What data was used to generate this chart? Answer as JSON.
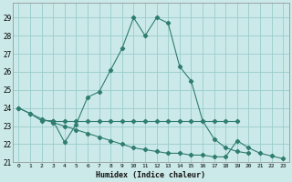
{
  "xlabel": "Humidex (Indice chaleur)",
  "xlim": [
    -0.5,
    23.5
  ],
  "ylim": [
    21,
    29.8
  ],
  "yticks": [
    21,
    22,
    23,
    24,
    25,
    26,
    27,
    28,
    29
  ],
  "xticks": [
    0,
    1,
    2,
    3,
    4,
    5,
    6,
    7,
    8,
    9,
    10,
    11,
    12,
    13,
    14,
    15,
    16,
    17,
    18,
    19,
    20,
    21,
    22,
    23
  ],
  "background_color": "#cce9e9",
  "grid_color": "#99cccc",
  "line_color": "#2e7d6e",
  "line1_x": [
    0,
    1,
    2,
    3,
    4,
    5,
    6,
    7,
    8,
    9,
    10,
    11,
    12,
    13,
    14,
    15,
    16,
    17,
    18,
    19,
    20
  ],
  "line1_y": [
    24.0,
    23.7,
    23.3,
    23.3,
    22.1,
    23.1,
    24.6,
    24.9,
    26.1,
    27.3,
    29.0,
    28.0,
    29.0,
    28.7,
    26.3,
    25.5,
    23.3,
    22.3,
    21.8,
    21.6,
    21.5
  ],
  "line2_x": [
    3,
    4,
    5,
    6,
    7,
    8,
    9,
    10,
    11,
    12,
    13,
    14,
    15,
    16,
    17,
    18,
    19
  ],
  "line2_y": [
    23.3,
    23.3,
    23.3,
    23.3,
    23.3,
    23.3,
    23.3,
    23.3,
    23.3,
    23.3,
    23.3,
    23.3,
    23.3,
    23.3,
    23.3,
    23.3,
    23.3
  ],
  "line3_x": [
    0,
    1,
    2,
    3,
    4,
    5,
    6,
    7,
    8,
    9,
    10,
    11,
    12,
    13,
    14,
    15,
    16,
    17,
    18,
    19,
    20,
    21,
    22,
    23
  ],
  "line3_y": [
    24.0,
    23.7,
    23.4,
    23.2,
    23.0,
    22.8,
    22.6,
    22.4,
    22.2,
    22.0,
    21.8,
    21.7,
    21.6,
    21.5,
    21.5,
    21.4,
    21.4,
    21.3,
    21.3,
    22.2,
    21.8,
    21.5,
    21.35,
    21.2
  ]
}
